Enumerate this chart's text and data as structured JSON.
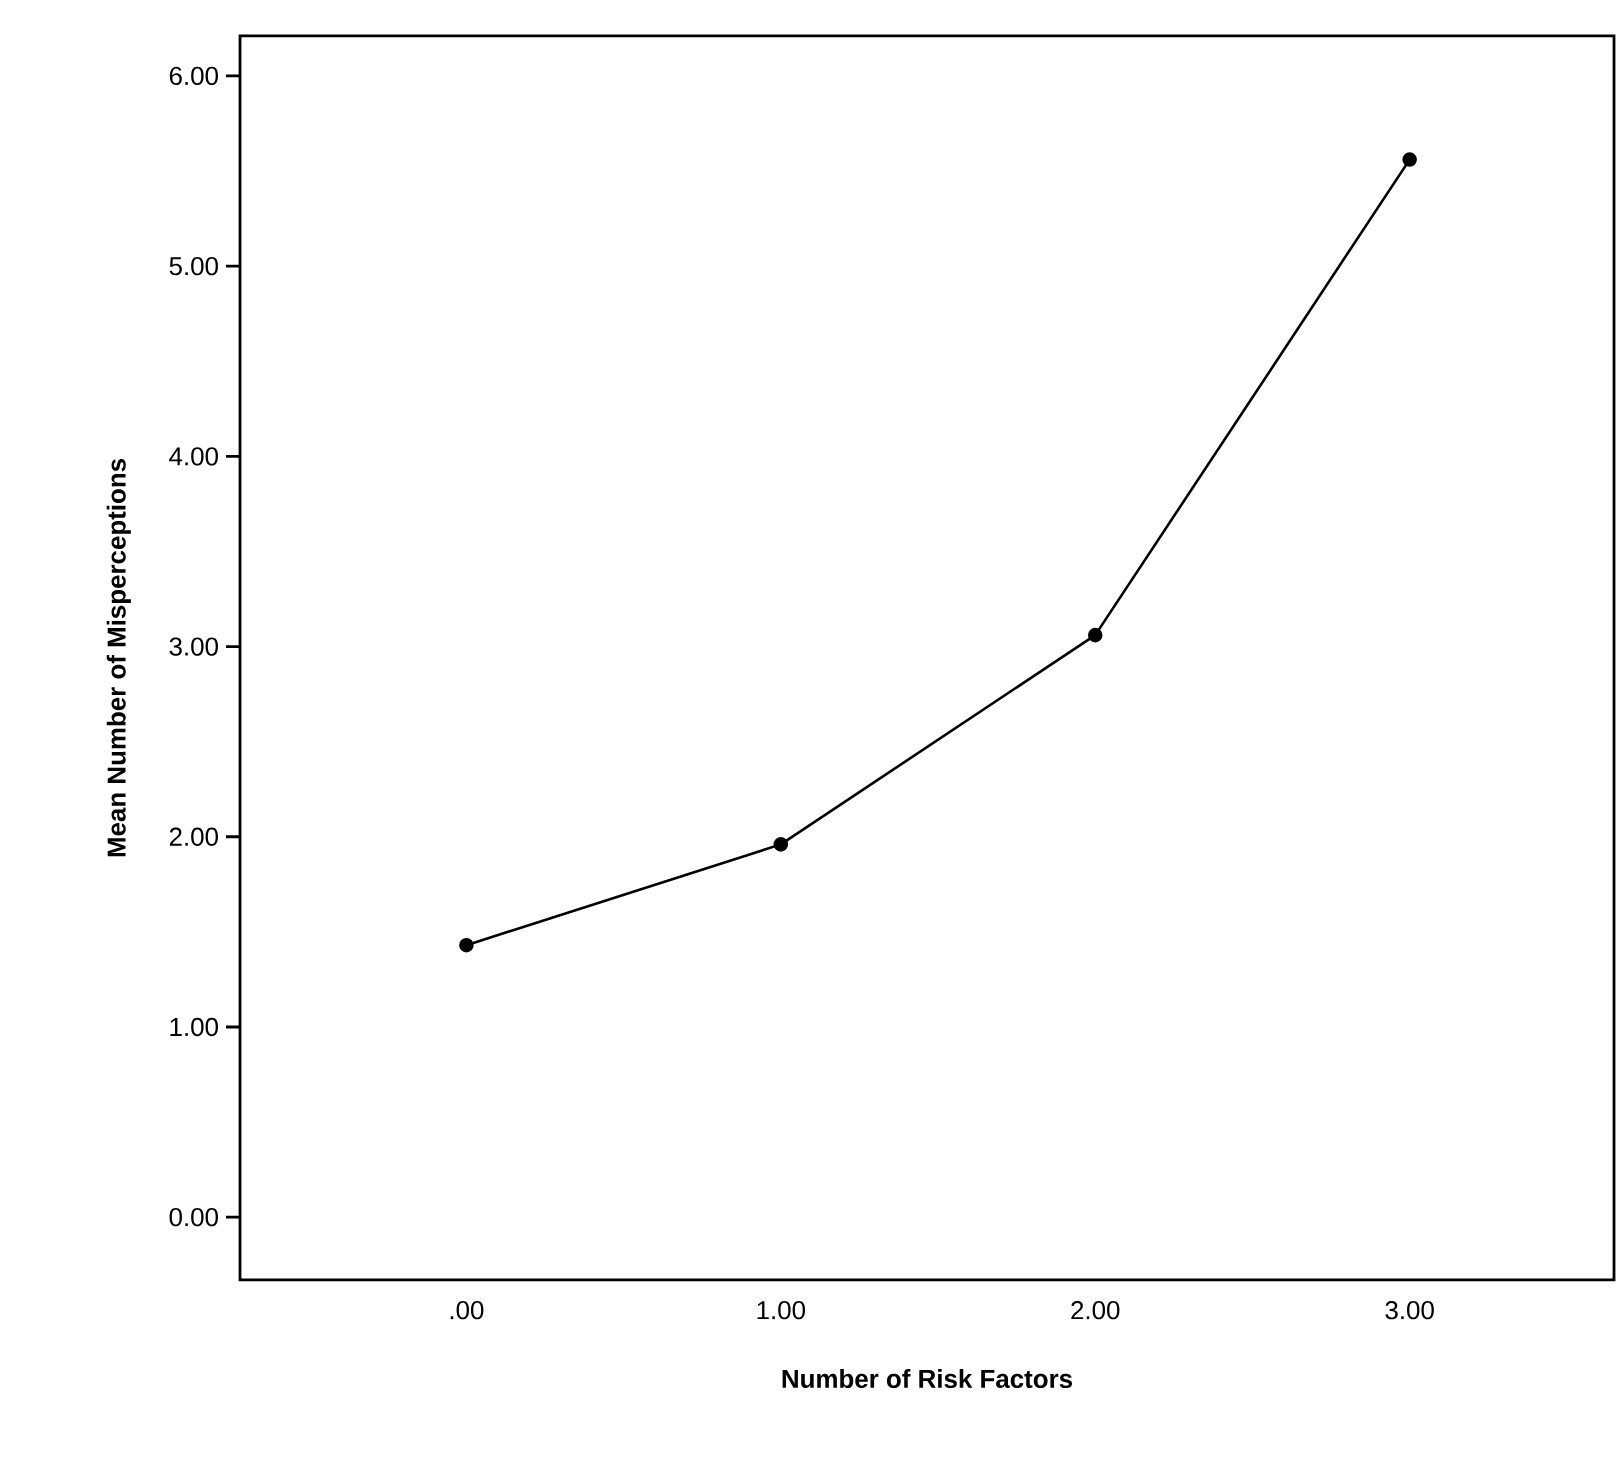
{
  "chart_data": {
    "type": "line",
    "xlabel": "Number of Risk Factors",
    "ylabel": "Mean  Number of Misperceptions",
    "x": [
      0,
      1,
      2,
      3
    ],
    "values": [
      1.43,
      1.96,
      3.06,
      5.56
    ],
    "color": "#000000",
    "marker": "circle",
    "line_style": "solid",
    "grid": false,
    "xlim": [
      -0.72,
      3.65
    ],
    "ylim": [
      -0.33,
      6.21
    ],
    "xticks": [
      {
        "value": 0,
        "label": ".00"
      },
      {
        "value": 1,
        "label": "1.00"
      },
      {
        "value": 2,
        "label": "2.00"
      },
      {
        "value": 3,
        "label": "3.00"
      }
    ],
    "yticks": [
      {
        "value": 0,
        "label": "0.00"
      },
      {
        "value": 1,
        "label": "1.00"
      },
      {
        "value": 2,
        "label": "2.00"
      },
      {
        "value": 3,
        "label": "3.00"
      },
      {
        "value": 4,
        "label": "4.00"
      },
      {
        "value": 5,
        "label": "5.00"
      },
      {
        "value": 6,
        "label": "6.00"
      }
    ]
  }
}
